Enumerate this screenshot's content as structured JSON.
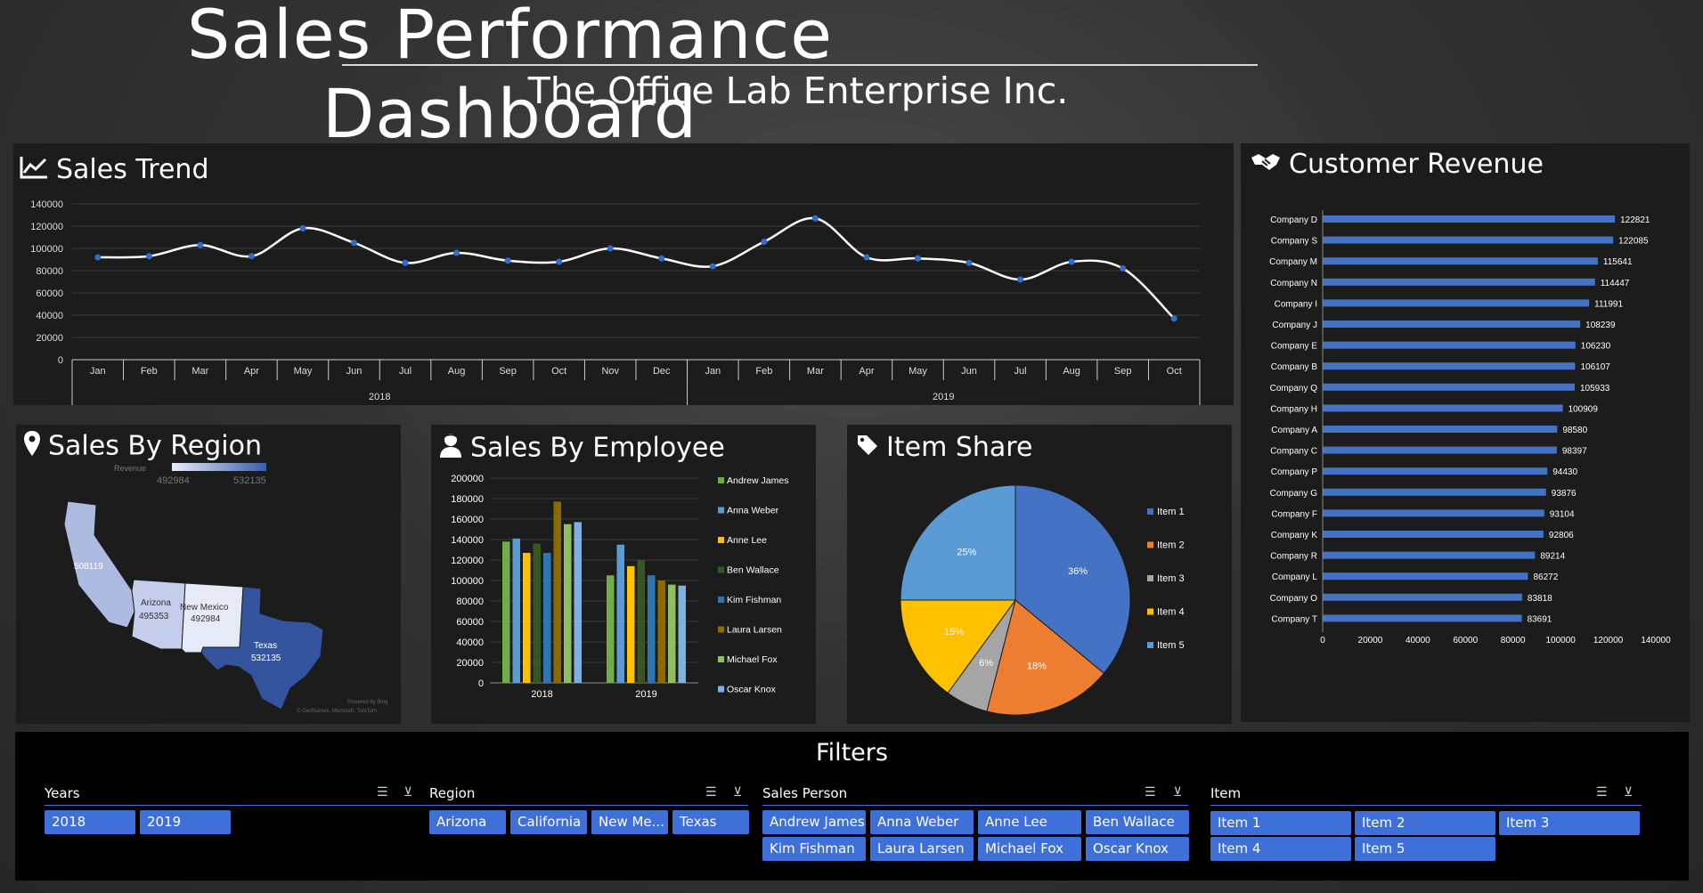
{
  "header": {
    "title": "Sales Performance Dashboard",
    "subtitle": "The Office Lab Enterprise Inc."
  },
  "panels": {
    "sales_trend": "Sales Trend",
    "customer_revenue": "Customer Revenue",
    "sales_by_region": "Sales By Region",
    "sales_by_employee": "Sales By Employee",
    "item_share": "Item Share"
  },
  "region_map": {
    "legend_label": "Revenue",
    "legend_min": "492984",
    "legend_max": "532135",
    "credit_1": "Powered by Bing",
    "credit_2": "© GeoNames, Microsoft, TomTom",
    "states": [
      {
        "name": "",
        "value": "508119"
      },
      {
        "name": "Arizona",
        "value": "495353"
      },
      {
        "name": "New Mexico",
        "value": "492984"
      },
      {
        "name": "Texas",
        "value": "532135"
      }
    ]
  },
  "filters": {
    "title": "Filters",
    "years": {
      "label": "Years",
      "options": [
        "2018",
        "2019"
      ]
    },
    "region": {
      "label": "Region",
      "options": [
        "Arizona",
        "California",
        "New Me...",
        "Texas"
      ]
    },
    "sales_person": {
      "label": "Sales Person",
      "options": [
        "Andrew James",
        "Anna Weber",
        "Anne Lee",
        "Ben Wallace",
        "Kim Fishman",
        "Laura Larsen",
        "Michael Fox",
        "Oscar Knox"
      ]
    },
    "item": {
      "label": "Item",
      "options": [
        "Item 1",
        "Item 2",
        "Item 3",
        "Item 4",
        "Item 5"
      ]
    }
  },
  "colors": {
    "accent": "#3f6fd8",
    "panel": "#1c1c1c"
  },
  "chart_data": [
    {
      "id": "sales_trend",
      "type": "line",
      "title": "Sales Trend",
      "categories": [
        "Jan",
        "Feb",
        "Mar",
        "Apr",
        "May",
        "Jun",
        "Jul",
        "Aug",
        "Sep",
        "Oct",
        "Nov",
        "Dec",
        "Jan",
        "Feb",
        "Mar",
        "Apr",
        "May",
        "Jun",
        "Jul",
        "Aug",
        "Sep",
        "Oct"
      ],
      "groups": [
        {
          "label": "2018",
          "count": 12
        },
        {
          "label": "2019",
          "count": 10
        }
      ],
      "values": [
        92000,
        93000,
        103000,
        93000,
        118000,
        105000,
        87000,
        96000,
        89000,
        88000,
        100000,
        91000,
        84000,
        106000,
        127000,
        92000,
        91000,
        87000,
        72000,
        88000,
        82000,
        37000
      ],
      "ylim": [
        0,
        140000
      ],
      "yticks": [
        "0",
        "20000",
        "40000",
        "60000",
        "80000",
        "100000",
        "120000",
        "140000"
      ],
      "grid": true
    },
    {
      "id": "customer_revenue",
      "type": "bar",
      "orientation": "horizontal",
      "title": "Customer Revenue",
      "categories": [
        "Company D",
        "Company S",
        "Company M",
        "Company N",
        "Company I",
        "Company J",
        "Company E",
        "Company B",
        "Company Q",
        "Company H",
        "Company A",
        "Company C",
        "Company P",
        "Company G",
        "Company F",
        "Company K",
        "Company R",
        "Company L",
        "Company O",
        "Company T"
      ],
      "values": [
        122821,
        122085,
        115641,
        114447,
        111991,
        108239,
        106230,
        106107,
        105933,
        100909,
        98580,
        98397,
        94430,
        93876,
        93104,
        92806,
        89214,
        86272,
        83818,
        83691
      ],
      "xlim": [
        0,
        140000
      ],
      "xticks": [
        "0",
        "20000",
        "40000",
        "60000",
        "80000",
        "100000",
        "120000",
        "140000"
      ]
    },
    {
      "id": "sales_by_employee",
      "type": "bar",
      "title": "Sales By Employee",
      "categories": [
        "2018",
        "2019"
      ],
      "series": [
        {
          "name": "Andrew James",
          "color": "#70ad47",
          "values": [
            138000,
            105000
          ]
        },
        {
          "name": "Anna Weber",
          "color": "#5b9bd5",
          "values": [
            141000,
            135000
          ]
        },
        {
          "name": "Anne Lee",
          "color": "#ffc000",
          "values": [
            127000,
            114000
          ]
        },
        {
          "name": "Ben Wallace",
          "color": "#375623",
          "values": [
            136000,
            120000
          ]
        },
        {
          "name": "Kim Fishman",
          "color": "#2e75b6",
          "values": [
            127000,
            105000
          ]
        },
        {
          "name": "Laura Larsen",
          "color": "#8b6b00",
          "values": [
            177000,
            100000
          ]
        },
        {
          "name": "Michael Fox",
          "color": "#8fbf5f",
          "values": [
            155000,
            96000
          ]
        },
        {
          "name": "Oscar Knox",
          "color": "#7fb0e0",
          "values": [
            157000,
            95000
          ]
        }
      ],
      "ylim": [
        0,
        200000
      ],
      "yticks": [
        "0",
        "20000",
        "40000",
        "60000",
        "80000",
        "100000",
        "120000",
        "140000",
        "160000",
        "180000",
        "200000"
      ],
      "grid": true,
      "legend": "right"
    },
    {
      "id": "item_share",
      "type": "pie",
      "title": "Item Share",
      "slices": [
        {
          "name": "Item 1",
          "value": 36,
          "label": "36%",
          "color": "#4472c4"
        },
        {
          "name": "Item 2",
          "value": 18,
          "label": "18%",
          "color": "#ed7d31"
        },
        {
          "name": "Item 3",
          "value": 6,
          "label": "6%",
          "color": "#a5a5a5"
        },
        {
          "name": "Item 4",
          "value": 15,
          "label": "15%",
          "color": "#ffc000"
        },
        {
          "name": "Item 5",
          "value": 25,
          "label": "25%",
          "color": "#5b9bd5"
        }
      ],
      "legend": "right"
    }
  ]
}
